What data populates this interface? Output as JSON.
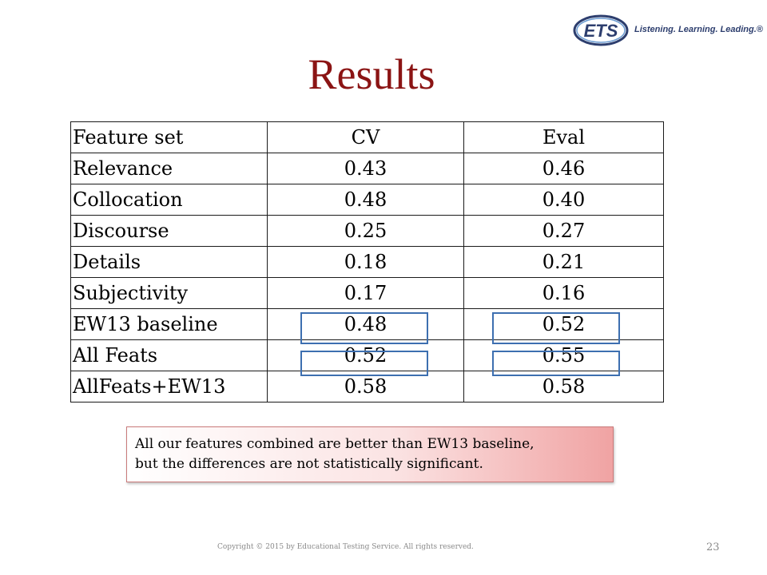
{
  "header": {
    "logo_text": "ETS",
    "tagline": "Listening. Learning. Leading.®"
  },
  "slide": {
    "title": "Results",
    "table": {
      "columns": [
        "Feature set",
        "CV",
        "Eval"
      ],
      "rows": [
        [
          "Relevance",
          "0.43",
          "0.46"
        ],
        [
          "Collocation",
          "0.48",
          "0.40"
        ],
        [
          "Discourse",
          "0.25",
          "0.27"
        ],
        [
          "Details",
          "0.18",
          "0.21"
        ],
        [
          "Subjectivity",
          "0.17",
          "0.16"
        ],
        [
          "EW13 baseline",
          "0.48",
          "0.52"
        ],
        [
          "All Feats",
          "0.52",
          "0.55"
        ],
        [
          "AllFeats+EW13",
          "0.58",
          "0.58"
        ]
      ]
    },
    "note_line1": "All our features combined are better than EW13 baseline,",
    "note_line2": "but the differences are not statistically significant."
  },
  "footer": {
    "copyright": "Copyright © 2015 by Educational Testing Service. All rights reserved.",
    "page_number": "23"
  },
  "colors": {
    "title": "#8b1414",
    "highlight_box": "#3d6fb0",
    "note_gradient_end": "#f0a3a3"
  }
}
